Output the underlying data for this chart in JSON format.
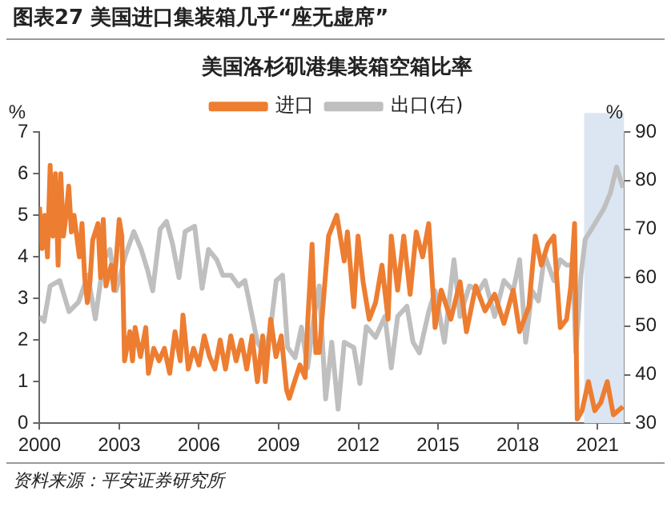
{
  "chart_data": {
    "type": "line",
    "title": "图表27   美国进口集装箱几乎“座无虚席”",
    "subtitle": "美国洛杉矶港集装箱空箱比率",
    "ylabel": "%",
    "y2label": "%",
    "annotations": [
      "资料来源：平安证券研究所"
    ],
    "xlim": [
      2000,
      2022
    ],
    "xticks": [
      2000,
      2003,
      2006,
      2009,
      2012,
      2015,
      2018,
      2021
    ],
    "ylim": [
      0,
      7
    ],
    "yticks": [
      0,
      1,
      2,
      3,
      4,
      5,
      6,
      7
    ],
    "y2lim": [
      30,
      90
    ],
    "y2ticks": [
      30,
      40,
      50,
      60,
      70,
      80,
      90
    ],
    "grid": false,
    "legend": "top",
    "marker": "none",
    "line_style": "solid",
    "bands": [
      {
        "axis": "x",
        "from": 2020.5,
        "to": 2022,
        "color": "#dce6f2"
      }
    ],
    "series": [
      {
        "name": "进口",
        "color": "#ed7d31",
        "x": [
          2000.0,
          2000.1,
          2000.2,
          2000.3,
          2000.4,
          2000.5,
          2000.6,
          2000.7,
          2000.8,
          2000.9,
          2001.0,
          2001.1,
          2001.2,
          2001.3,
          2001.5,
          2001.6,
          2001.7,
          2001.8,
          2001.9,
          2002.0,
          2002.2,
          2002.3,
          2002.4,
          2002.5,
          2002.7,
          2002.8,
          2003.0,
          2003.1,
          2003.2,
          2003.4,
          2003.5,
          2003.6,
          2003.8,
          2004.0,
          2004.1,
          2004.3,
          2004.5,
          2004.7,
          2004.9,
          2005.1,
          2005.3,
          2005.4,
          2005.6,
          2005.8,
          2006.0,
          2006.2,
          2006.4,
          2006.6,
          2006.8,
          2007.0,
          2007.2,
          2007.4,
          2007.6,
          2007.8,
          2008.0,
          2008.2,
          2008.4,
          2008.5,
          2008.7,
          2008.9,
          2009.1,
          2009.3,
          2009.4,
          2009.6,
          2009.8,
          2010.0,
          2010.1,
          2010.26,
          2010.4,
          2010.53,
          2010.88,
          2011.19,
          2011.47,
          2011.59,
          2011.83,
          2011.99,
          2012.18,
          2012.41,
          2012.65,
          2012.89,
          2013.12,
          2013.24,
          2013.48,
          2013.71,
          2013.95,
          2014.18,
          2014.42,
          2014.65,
          2014.89,
          2015.12,
          2015.48,
          2015.83,
          2016.07,
          2016.42,
          2016.77,
          2017.13,
          2017.48,
          2017.83,
          2018.07,
          2018.42,
          2018.66,
          2018.89,
          2019.13,
          2019.36,
          2019.6,
          2019.84,
          2020.0,
          2020.14,
          2020.24,
          2020.42,
          2020.66,
          2020.9,
          2021.13,
          2021.37,
          2021.6,
          2021.96
        ],
        "values": [
          5.2,
          4.2,
          5.0,
          4.0,
          6.2,
          4.5,
          6.0,
          3.8,
          6.0,
          4.5,
          5.0,
          5.7,
          4.6,
          5.0,
          4.0,
          4.8,
          3.5,
          2.9,
          3.4,
          4.4,
          4.8,
          3.5,
          4.9,
          3.3,
          3.8,
          3.2,
          4.9,
          4.5,
          1.5,
          2.2,
          1.5,
          2.3,
          1.6,
          2.3,
          1.2,
          1.8,
          1.5,
          1.8,
          1.2,
          2.2,
          1.5,
          2.6,
          1.3,
          1.8,
          1.4,
          2.1,
          1.6,
          1.3,
          2.0,
          1.3,
          2.1,
          1.5,
          2.0,
          1.3,
          2.1,
          1.0,
          2.1,
          1.0,
          2.5,
          1.6,
          2.1,
          0.8,
          0.6,
          1.0,
          1.4,
          1.1,
          2.5,
          4.3,
          1.7,
          1.7,
          4.5,
          5.0,
          3.9,
          4.6,
          2.8,
          4.5,
          3.4,
          2.5,
          2.9,
          3.8,
          2.5,
          4.5,
          3.2,
          4.5,
          3.1,
          4.6,
          4.0,
          4.8,
          2.3,
          3.2,
          2.5,
          3.4,
          2.2,
          3.3,
          2.7,
          3.1,
          2.4,
          3.2,
          2.2,
          2.8,
          4.5,
          3.8,
          4.3,
          4.5,
          2.3,
          2.5,
          3.3,
          4.8,
          0.1,
          0.3,
          1.0,
          0.3,
          0.5,
          1.0,
          0.2,
          0.4
        ]
      },
      {
        "name": "出口(右)",
        "color": "#bfbfbf",
        "axis": "y2",
        "x": [
          2000.0,
          2000.17,
          2000.4,
          2000.76,
          2001.11,
          2001.47,
          2001.82,
          2002.1,
          2002.41,
          2002.65,
          2002.88,
          2003.24,
          2003.55,
          2003.83,
          2004.07,
          2004.26,
          2004.54,
          2004.78,
          2005.01,
          2005.25,
          2005.48,
          2005.84,
          2006.12,
          2006.36,
          2006.67,
          2006.9,
          2007.21,
          2007.49,
          2007.73,
          2007.97,
          2008.2,
          2008.44,
          2008.68,
          2008.91,
          2009.15,
          2009.34,
          2009.62,
          2009.86,
          2010.09,
          2010.33,
          2010.53,
          2010.77,
          2011.0,
          2011.24,
          2011.47,
          2011.83,
          2012.06,
          2012.3,
          2012.65,
          2013.0,
          2013.24,
          2013.48,
          2013.83,
          2014.06,
          2014.3,
          2014.65,
          2014.89,
          2015.24,
          2015.6,
          2015.83,
          2016.18,
          2016.54,
          2016.77,
          2017.13,
          2017.48,
          2017.83,
          2018.07,
          2018.3,
          2018.54,
          2018.78,
          2019.01,
          2019.36,
          2019.6,
          2019.84,
          2020.07,
          2020.19,
          2020.38,
          2020.54,
          2020.78,
          2021.01,
          2021.25,
          2021.49,
          2021.72,
          2021.96
        ],
        "values": [
          52,
          51,
          58.3,
          59.4,
          53,
          55,
          60.5,
          51.5,
          63.6,
          65.8,
          57.3,
          64.7,
          69.5,
          65.8,
          61.5,
          57.3,
          70,
          71.6,
          66.9,
          60,
          69.5,
          70.6,
          57.8,
          65.8,
          63.7,
          60.5,
          60.5,
          58.3,
          59.4,
          53,
          46.7,
          44.6,
          48.8,
          59.4,
          60.5,
          45.6,
          43.5,
          49.8,
          41.4,
          52,
          58.3,
          35,
          46.7,
          32.9,
          46.7,
          45.6,
          38.2,
          49.9,
          47.7,
          52,
          41.4,
          52,
          54.1,
          46.7,
          44.5,
          53,
          57.3,
          46.7,
          63.7,
          52,
          58.3,
          57.3,
          59.4,
          52,
          59.4,
          57.3,
          63.7,
          46.7,
          57.3,
          55.2,
          64.7,
          59.4,
          63.7,
          62.6,
          62.6,
          44.5,
          60.5,
          67.9,
          70,
          72.1,
          74.3,
          77.5,
          82.8,
          78.5
        ]
      }
    ]
  }
}
